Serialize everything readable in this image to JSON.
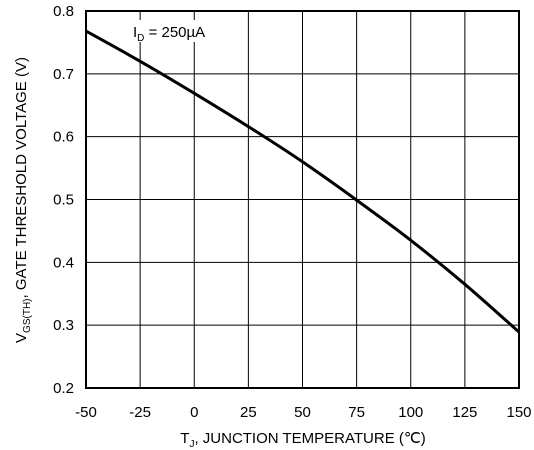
{
  "chart_data": {
    "type": "line",
    "title": "",
    "xlabel": {
      "symbol": "T",
      "subscript": "J",
      "text": ", JUNCTION TEMPERATURE (℃)"
    },
    "ylabel": {
      "symbol": "V",
      "subscript": "GS(TH)",
      "text": ",  GATE THRESHOLD VOLTAGE (V)"
    },
    "xlim": [
      -50,
      150
    ],
    "ylim": [
      0.2,
      0.8
    ],
    "xticks": [
      -50,
      -25,
      0,
      25,
      50,
      75,
      100,
      125,
      150
    ],
    "yticks": [
      0.2,
      0.3,
      0.4,
      0.5,
      0.6,
      0.7,
      0.8
    ],
    "xtick_labels": [
      "-50",
      "-25",
      "0",
      "25",
      "50",
      "75",
      "100",
      "125",
      "150"
    ],
    "ytick_labels": [
      "0.2",
      "0.3",
      "0.4",
      "0.5",
      "0.6",
      "0.7",
      "0.8"
    ],
    "grid": true,
    "annotation": {
      "symbol": "I",
      "subscript": "D",
      "text": " = 250µA"
    },
    "series": [
      {
        "x": [
          -50,
          -25,
          0,
          25,
          50,
          75,
          100,
          125,
          150
        ],
        "y": [
          0.768,
          0.72,
          0.669,
          0.616,
          0.56,
          0.499,
          0.435,
          0.365,
          0.289
        ]
      }
    ]
  }
}
